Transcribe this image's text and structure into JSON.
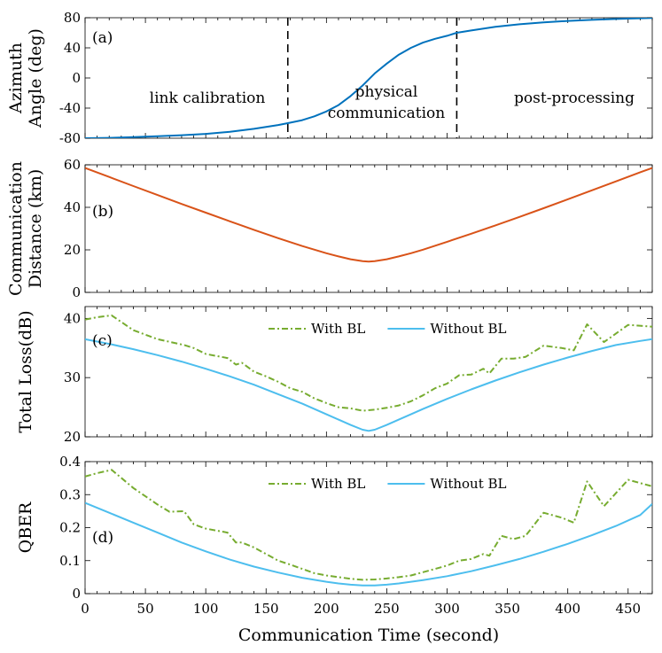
{
  "chart_data": {
    "type": "line",
    "xlabel": "Communication Time (second)",
    "x_ticks": [
      "0",
      "50",
      "100",
      "150",
      "200",
      "250",
      "300",
      "350",
      "400",
      "450"
    ],
    "xlim": [
      0,
      470
    ],
    "panels": [
      {
        "id": "a",
        "panel_label": "(a)",
        "ylabel_lines": [
          "Azimuth",
          "Angle (deg)"
        ],
        "ylim": [
          -80,
          80
        ],
        "y_ticks": [
          "-80",
          "-40",
          "0",
          "40",
          "80"
        ],
        "y_tick_values": [
          -80,
          -40,
          0,
          40,
          80
        ],
        "series": [
          {
            "name": "Azimuth Angle",
            "color": "#0072BD",
            "x": [
              0,
              20,
              40,
              60,
              80,
              100,
              120,
              140,
              160,
              168,
              180,
              190,
              200,
              210,
              220,
              230,
              235,
              240,
              250,
              260,
              270,
              280,
              290,
              300,
              308,
              320,
              340,
              360,
              380,
              400,
              420,
              440,
              460,
              470
            ],
            "values": [
              -80,
              -79.5,
              -78.5,
              -77.3,
              -76,
              -74.2,
              -71.5,
              -67.5,
              -62.5,
              -60,
              -56,
              -51,
              -44.5,
              -36,
              -24,
              -10,
              -2,
              6,
              19,
              31,
              40,
              47,
              52,
              56,
              60,
              63,
              68,
              71.3,
              73.8,
              75.8,
              77.2,
              78.3,
              79.3,
              79.7
            ]
          }
        ],
        "vlines": [
          168,
          308
        ],
        "annotations": [
          {
            "lines": [
              "link calibration"
            ]
          },
          {
            "lines": [
              "physical",
              "communication"
            ]
          },
          {
            "lines": [
              "post-processing"
            ]
          }
        ]
      },
      {
        "id": "b",
        "panel_label": "(b)",
        "ylabel_lines": [
          "Communication",
          "Distance (km)"
        ],
        "ylim": [
          0,
          60
        ],
        "y_ticks": [
          "0",
          "20",
          "40",
          "60"
        ],
        "y_tick_values": [
          0,
          20,
          40,
          60
        ],
        "series": [
          {
            "name": "Communication Distance",
            "color": "#D95319",
            "x": [
              0,
              20,
              40,
              60,
              80,
              100,
              120,
              140,
              160,
              180,
              200,
              210,
              220,
              230,
              235,
              240,
              250,
              260,
              270,
              280,
              300,
              320,
              340,
              360,
              380,
              400,
              420,
              440,
              460,
              470
            ],
            "values": [
              58.5,
              54.3,
              50,
              45.8,
              41.6,
              37.5,
              33.4,
              29.4,
              25.5,
              21.8,
              18.4,
              16.9,
              15.6,
              14.7,
              14.5,
              14.7,
              15.6,
              16.9,
              18.4,
              20.1,
              23.8,
              27.6,
              31.5,
              35.5,
              39.6,
              43.8,
              48,
              52.2,
              56.5,
              58.5
            ]
          }
        ]
      },
      {
        "id": "c",
        "panel_label": "(c)",
        "ylabel_lines": [
          "Total Loss(dB)"
        ],
        "ylim": [
          20,
          42
        ],
        "y_ticks": [
          "20",
          "30",
          "40"
        ],
        "y_tick_values": [
          20,
          30,
          40
        ],
        "legend_position": "top-center",
        "series": [
          {
            "name": "With BL",
            "color": "#77AC30",
            "dash": "7,3,2,3",
            "x": [
              0,
              10,
              22,
              40,
              60,
              82,
              90,
              100,
              118,
              125,
              130,
              140,
              150,
              160,
              170,
              180,
              190,
              200,
              210,
              220,
              230,
              240,
              250,
              260,
              270,
              280,
              290,
              300,
              310,
              320,
              330,
              335,
              345,
              355,
              365,
              380,
              395,
              405,
              416,
              430,
              450,
              470
            ],
            "values": [
              39.8,
              40.2,
              40.5,
              38,
              36.5,
              35.5,
              35,
              34,
              33.3,
              32.2,
              32.5,
              31,
              30.2,
              29.3,
              28.2,
              27.6,
              26.5,
              25.7,
              25,
              24.8,
              24.4,
              24.6,
              24.9,
              25.3,
              26,
              27,
              28.2,
              29,
              30.4,
              30.5,
              31.5,
              30.7,
              33.2,
              33.2,
              33.5,
              35.4,
              35,
              34.6,
              39,
              36,
              38.9,
              38.6
            ]
          },
          {
            "name": "Without BL",
            "color": "#4DBEEE",
            "x": [
              0,
              20,
              40,
              60,
              80,
              100,
              120,
              140,
              160,
              180,
              200,
              210,
              220,
              230,
              235,
              240,
              250,
              260,
              270,
              280,
              300,
              320,
              340,
              360,
              380,
              400,
              420,
              440,
              460,
              470
            ],
            "values": [
              36.5,
              35.7,
              34.8,
              33.8,
              32.7,
              31.5,
              30.2,
              28.8,
              27.2,
              25.6,
              23.8,
              22.9,
              22,
              21.2,
              21,
              21.2,
              22,
              22.9,
              23.8,
              24.7,
              26.4,
              28,
              29.5,
              30.9,
              32.2,
              33.4,
              34.5,
              35.5,
              36.2,
              36.5
            ]
          }
        ]
      },
      {
        "id": "d",
        "panel_label": "(d)",
        "ylabel_lines": [
          "QBER"
        ],
        "ylim": [
          0,
          0.4
        ],
        "y_ticks": [
          "0",
          "0.1",
          "0.2",
          "0.3",
          "0.4"
        ],
        "y_tick_values": [
          0,
          0.1,
          0.2,
          0.3,
          0.4
        ],
        "legend_position": "top-center",
        "series": [
          {
            "name": "With BL",
            "color": "#77AC30",
            "dash": "7,3,2,3",
            "x": [
              0,
              10,
              22,
              40,
              60,
              70,
              82,
              90,
              100,
              118,
              125,
              130,
              140,
              150,
              160,
              170,
              180,
              190,
              200,
              210,
              220,
              230,
              240,
              250,
              260,
              270,
              280,
              290,
              300,
              310,
              320,
              330,
              335,
              345,
              355,
              365,
              380,
              395,
              405,
              416,
              430,
              450,
              470
            ],
            "values": [
              0.355,
              0.365,
              0.375,
              0.32,
              0.27,
              0.248,
              0.25,
              0.21,
              0.197,
              0.185,
              0.155,
              0.155,
              0.14,
              0.12,
              0.1,
              0.088,
              0.075,
              0.062,
              0.055,
              0.05,
              0.045,
              0.042,
              0.043,
              0.046,
              0.05,
              0.055,
              0.065,
              0.075,
              0.085,
              0.1,
              0.105,
              0.12,
              0.115,
              0.175,
              0.165,
              0.175,
              0.245,
              0.23,
              0.215,
              0.34,
              0.265,
              0.345,
              0.325
            ]
          },
          {
            "name": "Without BL",
            "color": "#4DBEEE",
            "x": [
              0,
              20,
              40,
              60,
              80,
              100,
              120,
              140,
              160,
              180,
              200,
              210,
              220,
              230,
              235,
              240,
              250,
              260,
              270,
              280,
              300,
              320,
              340,
              360,
              380,
              400,
              420,
              440,
              460,
              470
            ],
            "values": [
              0.275,
              0.245,
              0.215,
              0.185,
              0.155,
              0.128,
              0.103,
              0.082,
              0.064,
              0.048,
              0.036,
              0.031,
              0.027,
              0.025,
              0.025,
              0.025,
              0.027,
              0.031,
              0.036,
              0.041,
              0.053,
              0.068,
              0.086,
              0.105,
              0.127,
              0.151,
              0.177,
              0.205,
              0.238,
              0.272
            ]
          }
        ]
      }
    ]
  }
}
